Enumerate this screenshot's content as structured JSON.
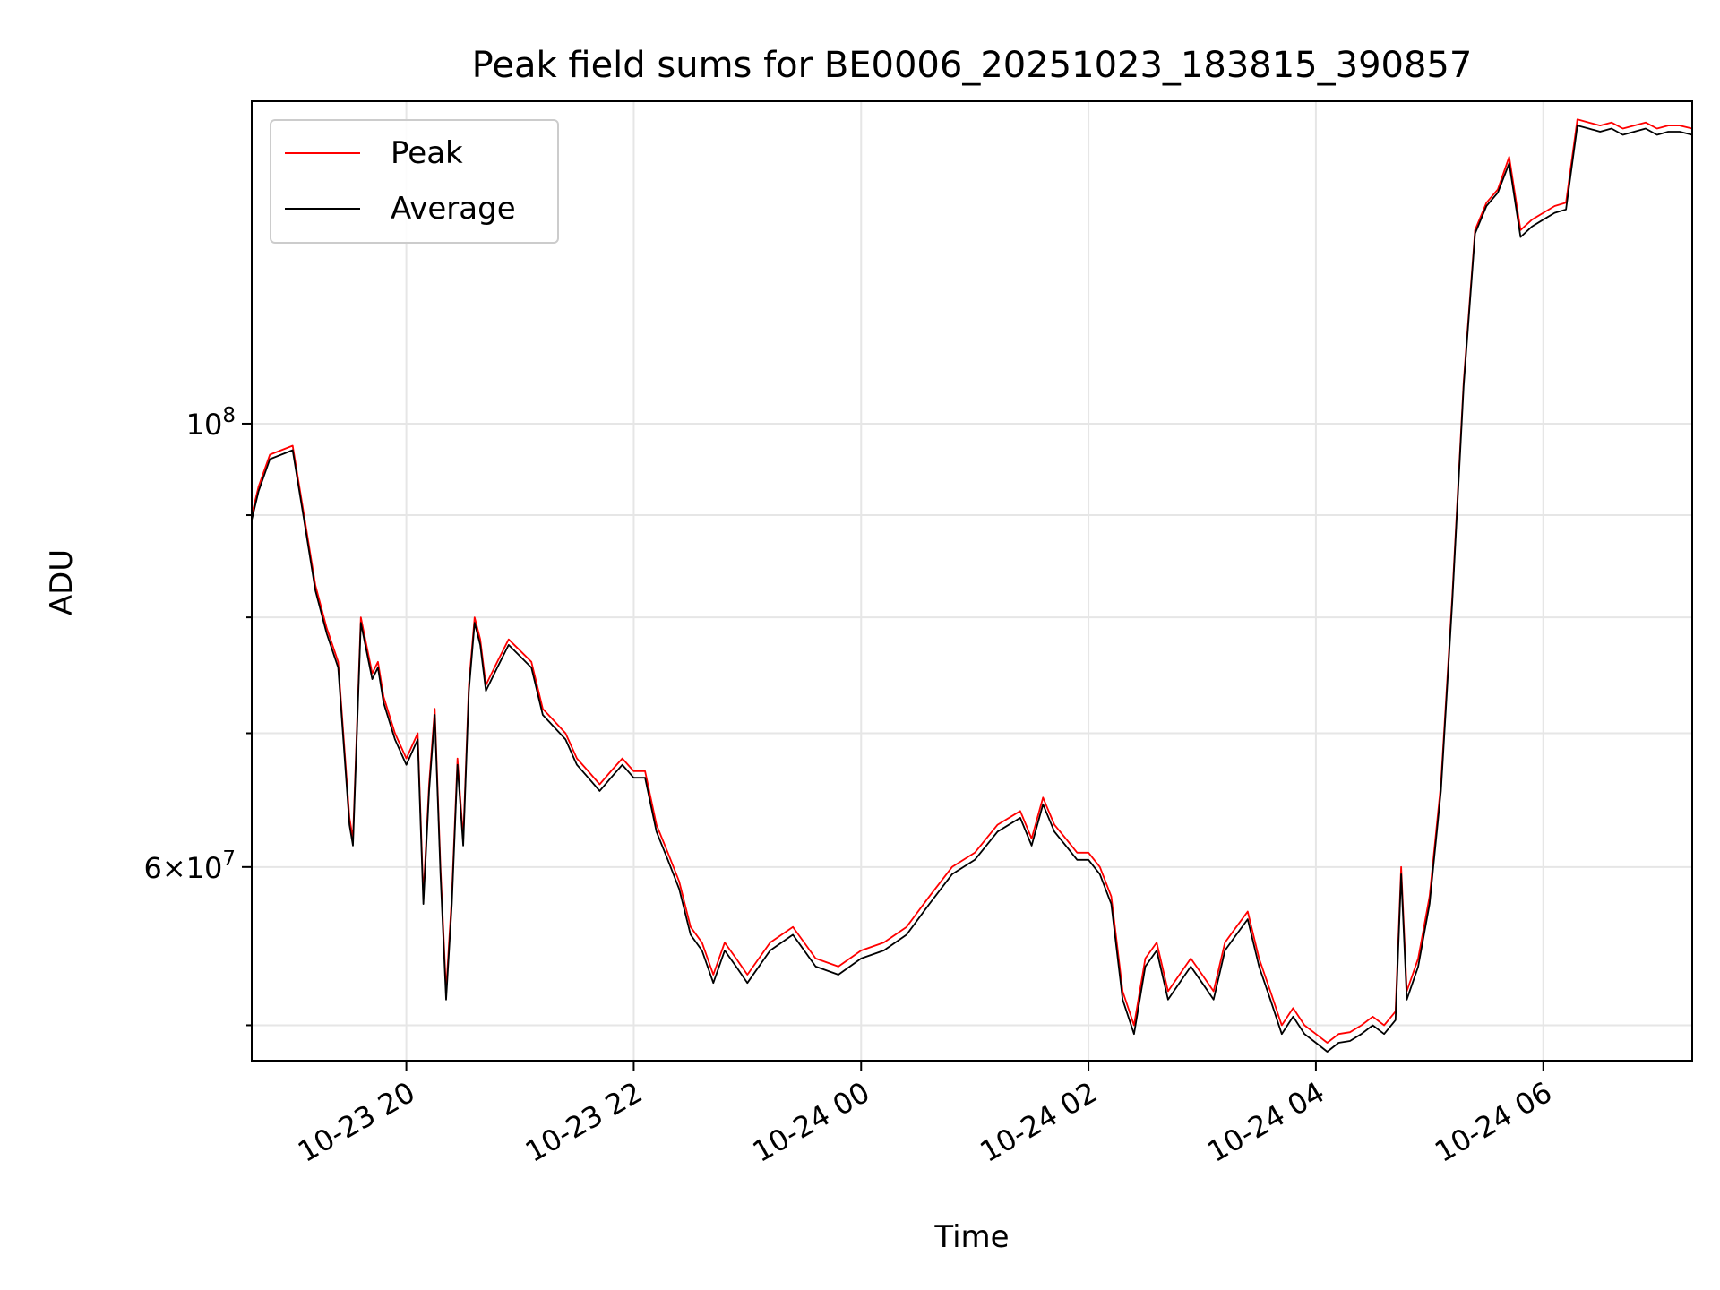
{
  "chart_data": {
    "type": "line",
    "title": "Peak field sums for BE0006_20251023_183815_390857",
    "xlabel": "Time",
    "ylabel": "ADU",
    "yscale": "log",
    "grid": true,
    "legend_position": "upper-left",
    "xlim_hours": [
      18.64,
      7.31
    ],
    "ylim": [
      48000000,
      145000000
    ],
    "x_tick_labels": [
      "10-23 20",
      "10-23 22",
      "10-24 00",
      "10-24 02",
      "10-24 04",
      "10-24 06"
    ],
    "x_tick_hours_since_2025_10_23_00": [
      20,
      22,
      24,
      26,
      28,
      30
    ],
    "y_tick_labels": [
      {
        "base": "10",
        "exp": "8",
        "value": 100000000
      },
      {
        "coef": "6",
        "times": "×",
        "base": "10",
        "exp": "7",
        "value": 60000000
      }
    ],
    "y_minor_ticks": [
      50000000,
      70000000,
      80000000,
      90000000
    ],
    "x_hours_since_2025_10_23_00": [
      18.64,
      18.7,
      18.8,
      18.9,
      19.0,
      19.1,
      19.2,
      19.3,
      19.4,
      19.5,
      19.53,
      19.6,
      19.7,
      19.75,
      19.8,
      19.9,
      20.0,
      20.1,
      20.15,
      20.2,
      20.25,
      20.3,
      20.35,
      20.4,
      20.45,
      20.5,
      20.55,
      20.6,
      20.65,
      20.7,
      20.8,
      20.9,
      21.0,
      21.1,
      21.2,
      21.3,
      21.4,
      21.5,
      21.6,
      21.7,
      21.8,
      21.9,
      22.0,
      22.1,
      22.2,
      22.3,
      22.4,
      22.5,
      22.6,
      22.7,
      22.8,
      22.9,
      23.0,
      23.2,
      23.4,
      23.6,
      23.8,
      24.0,
      24.2,
      24.4,
      24.6,
      24.8,
      25.0,
      25.2,
      25.4,
      25.5,
      25.6,
      25.7,
      25.8,
      25.9,
      26.0,
      26.1,
      26.2,
      26.3,
      26.4,
      26.5,
      26.6,
      26.7,
      26.8,
      26.9,
      27.0,
      27.1,
      27.2,
      27.3,
      27.4,
      27.5,
      27.6,
      27.7,
      27.8,
      27.9,
      28.0,
      28.1,
      28.2,
      28.3,
      28.4,
      28.5,
      28.6,
      28.7,
      28.75,
      28.8,
      28.9,
      29.0,
      29.1,
      29.2,
      29.3,
      29.4,
      29.5,
      29.6,
      29.7,
      29.8,
      29.9,
      30.0,
      30.1,
      30.2,
      30.3,
      30.4,
      30.5,
      30.6,
      30.7,
      30.8,
      30.9,
      31.0,
      31.1,
      31.2,
      31.31
    ],
    "series": [
      {
        "name": "Peak",
        "color": "#ff0000",
        "values": [
          90000000,
          93000000,
          96500000,
          97000000,
          97500000,
          90000000,
          83000000,
          79000000,
          76000000,
          63500000,
          62000000,
          80000000,
          75000000,
          76000000,
          73000000,
          70000000,
          68000000,
          70000000,
          58000000,
          66000000,
          72000000,
          60000000,
          52000000,
          58000000,
          68000000,
          62000000,
          74000000,
          80000000,
          78000000,
          74000000,
          76000000,
          78000000,
          77000000,
          76000000,
          72000000,
          71000000,
          70000000,
          68000000,
          67000000,
          66000000,
          67000000,
          68000000,
          67000000,
          67000000,
          63000000,
          61000000,
          59000000,
          56000000,
          55000000,
          53000000,
          55000000,
          54000000,
          53000000,
          55000000,
          56000000,
          54000000,
          53500000,
          54500000,
          55000000,
          56000000,
          58000000,
          60000000,
          61000000,
          63000000,
          64000000,
          62000000,
          65000000,
          63000000,
          62000000,
          61000000,
          61000000,
          60000000,
          58000000,
          52000000,
          50000000,
          54000000,
          55000000,
          52000000,
          53000000,
          54000000,
          53000000,
          52000000,
          55000000,
          56000000,
          57000000,
          54000000,
          52000000,
          50000000,
          51000000,
          50000000,
          49500000,
          49000000,
          49500000,
          49600000,
          50000000,
          50500000,
          50000000,
          50800000,
          60000000,
          52000000,
          54000000,
          58000000,
          66000000,
          82000000,
          105000000,
          125000000,
          129000000,
          131000000,
          136000000,
          125000000,
          126500000,
          127500000,
          128500000,
          129000000,
          142000000,
          141500000,
          141000000,
          141500000,
          140500000,
          141000000,
          141500000,
          140500000,
          141000000,
          141000000,
          140500000
        ]
      },
      {
        "name": "Average",
        "color": "#000000",
        "values": [
          89500000,
          92500000,
          96000000,
          96500000,
          97000000,
          89500000,
          82500000,
          78500000,
          75500000,
          63000000,
          61500000,
          79500000,
          74500000,
          75500000,
          72500000,
          69500000,
          67500000,
          69500000,
          57500000,
          65500000,
          71500000,
          59500000,
          51500000,
          57500000,
          67500000,
          61500000,
          73500000,
          79500000,
          77500000,
          73500000,
          75500000,
          77500000,
          76500000,
          75500000,
          71500000,
          70500000,
          69500000,
          67500000,
          66500000,
          65500000,
          66500000,
          67500000,
          66500000,
          66500000,
          62500000,
          60500000,
          58500000,
          55500000,
          54500000,
          52500000,
          54500000,
          53500000,
          52500000,
          54500000,
          55500000,
          53500000,
          53000000,
          54000000,
          54500000,
          55500000,
          57500000,
          59500000,
          60500000,
          62500000,
          63500000,
          61500000,
          64500000,
          62500000,
          61500000,
          60500000,
          60500000,
          59500000,
          57500000,
          51500000,
          49500000,
          53500000,
          54500000,
          51500000,
          52500000,
          53500000,
          52500000,
          51500000,
          54500000,
          55500000,
          56500000,
          53500000,
          51500000,
          49500000,
          50500000,
          49500000,
          49000000,
          48500000,
          49000000,
          49100000,
          49500000,
          50000000,
          49500000,
          50300000,
          59500000,
          51500000,
          53500000,
          57500000,
          65500000,
          81500000,
          104500000,
          124500000,
          128500000,
          130500000,
          135000000,
          124000000,
          125500000,
          126500000,
          127500000,
          128000000,
          141000000,
          140500000,
          140000000,
          140500000,
          139500000,
          140000000,
          140500000,
          139500000,
          140000000,
          140000000,
          139500000
        ]
      }
    ]
  }
}
